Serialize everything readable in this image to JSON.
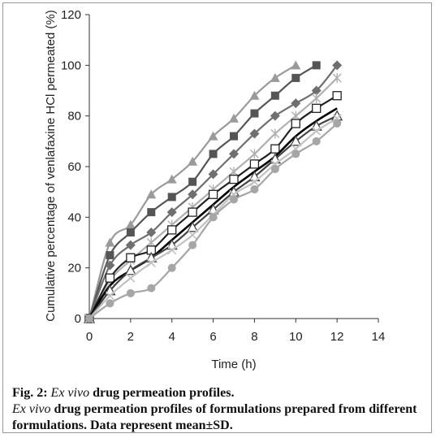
{
  "chart_data": {
    "type": "line",
    "title": "",
    "xlabel": "Time (h)",
    "ylabel": "Cumulative percentage of venlafaxine HCl permeated (%)",
    "xlim": [
      0,
      14
    ],
    "ylim": [
      0,
      120
    ],
    "xticks": [
      0,
      2,
      4,
      6,
      8,
      10,
      12,
      14
    ],
    "yticks": [
      0,
      20,
      40,
      60,
      80,
      100,
      120
    ],
    "grid": false,
    "legend": "none",
    "series": [
      {
        "color": "#9a9a9a",
        "marker": "triangle-filled",
        "x": [
          0,
          1,
          2,
          3,
          4,
          5,
          6,
          7,
          8,
          9,
          10
        ],
        "values": [
          0,
          30,
          37,
          49,
          55,
          62,
          72,
          79,
          88,
          95,
          100
        ]
      },
      {
        "color": "#555555",
        "marker": "square-filled",
        "x": [
          0,
          1,
          2,
          3,
          4,
          5,
          6,
          7,
          8,
          9,
          10,
          11
        ],
        "values": [
          0,
          25,
          34,
          42,
          48,
          54,
          65,
          72,
          81,
          88,
          95,
          100
        ]
      },
      {
        "color": "#6f6f6f",
        "marker": "diamond-filled",
        "x": [
          0,
          1,
          2,
          3,
          4,
          5,
          6,
          7,
          8,
          9,
          10,
          11,
          12
        ],
        "values": [
          0,
          21,
          29,
          34,
          42,
          49,
          57,
          65,
          73,
          80,
          85,
          90,
          100
        ]
      },
      {
        "color": "#b0b0b0",
        "marker": "star",
        "x": [
          0,
          1,
          2,
          3,
          4,
          5,
          6,
          7,
          8,
          9,
          10,
          11,
          12
        ],
        "values": [
          0,
          15,
          23,
          30,
          37,
          44,
          51,
          58,
          65,
          73,
          80,
          87,
          95
        ]
      },
      {
        "color": "#222222",
        "marker": "square-open",
        "x": [
          0,
          1,
          2,
          3,
          4,
          5,
          6,
          7,
          8,
          9,
          10,
          11,
          12
        ],
        "values": [
          0,
          16,
          24,
          27,
          35,
          42,
          49,
          55,
          61,
          67,
          77,
          83,
          88
        ]
      },
      {
        "color": "#000000",
        "marker": "none",
        "x": [
          0,
          1,
          2,
          3,
          4,
          5,
          6,
          7,
          8,
          9,
          10,
          11,
          12
        ],
        "values": [
          0,
          13,
          19,
          24,
          31,
          38,
          45,
          52,
          58,
          64,
          72,
          78,
          83
        ]
      },
      {
        "color": "#444444",
        "marker": "triangle-open",
        "x": [
          0,
          1,
          2,
          3,
          4,
          5,
          6,
          7,
          8,
          9,
          10,
          11,
          12
        ],
        "values": [
          0,
          11,
          19,
          24,
          29,
          36,
          43,
          50,
          56,
          63,
          70,
          76,
          80
        ]
      },
      {
        "color": "#c2c2c2",
        "marker": "x",
        "x": [
          0,
          1,
          2,
          3,
          4,
          5,
          6,
          7,
          8,
          9,
          10,
          11,
          12
        ],
        "values": [
          0,
          9,
          16,
          22,
          27,
          33,
          41,
          49,
          54,
          61,
          67,
          74,
          79
        ]
      },
      {
        "color": "#a6a6a6",
        "marker": "circle-filled",
        "x": [
          0,
          1,
          2,
          3,
          4,
          5,
          6,
          7,
          8,
          9,
          10,
          11,
          12
        ],
        "values": [
          0,
          6,
          10,
          12,
          20,
          29,
          40,
          47,
          51,
          59,
          65,
          70,
          77
        ]
      }
    ]
  },
  "caption": {
    "fig_label": "Fig. 2:",
    "fig_title_italic": "Ex vivo",
    "fig_title_rest": " drug permeation profiles.",
    "desc_italic": "Ex vivo",
    "desc_rest": " drug permeation profiles of formulations prepared from different formulations. Data represent mean±SD."
  }
}
